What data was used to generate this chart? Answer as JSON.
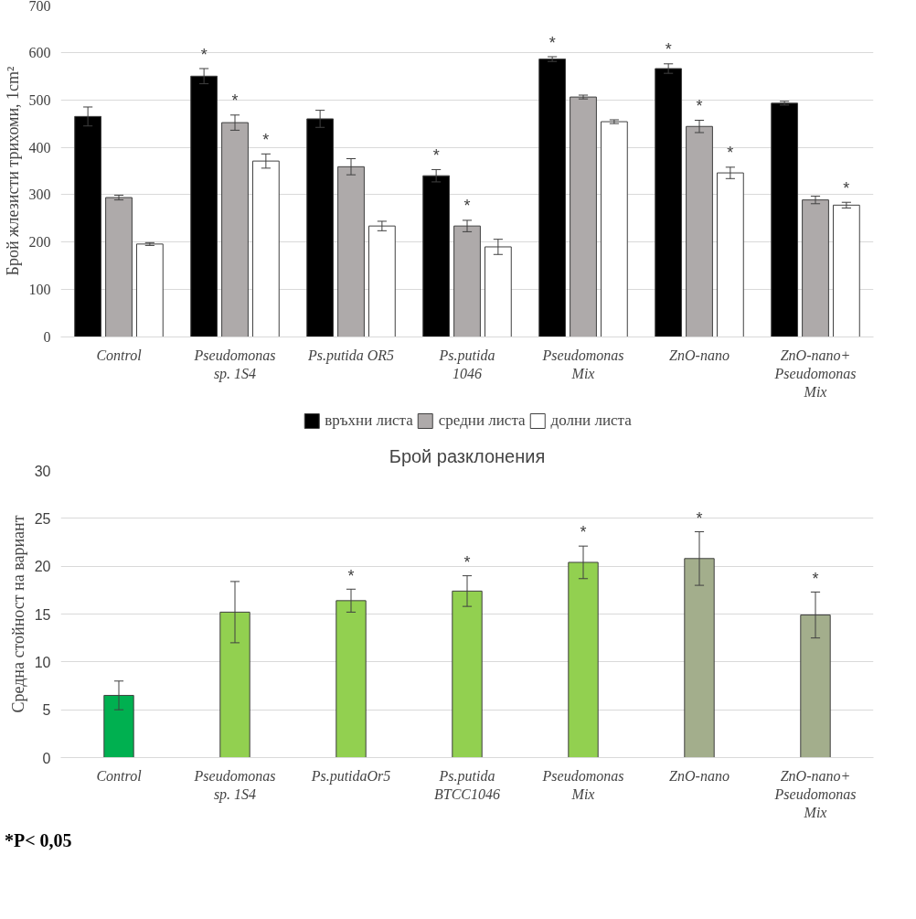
{
  "chart_data": [
    {
      "type": "bar",
      "ylabel": "Брой жлезисти трихоми, 1cm²",
      "categories": [
        "Control",
        "Pseudomonas\nsp. 1S4",
        "Ps.putida OR5",
        "Ps.putida\n1046",
        "Pseudomonas\nMix",
        "ZnO-nano",
        "ZnO-nano+\nPseudomonas\nMix"
      ],
      "series": [
        {
          "name": "връхни листа",
          "color": "#000000",
          "values": [
            465,
            550,
            460,
            340,
            586,
            566,
            493
          ],
          "errors": [
            20,
            16,
            18,
            13,
            5,
            10,
            4
          ],
          "value_labels": [
            null,
            "*",
            null,
            "*",
            "*",
            "*",
            null
          ]
        },
        {
          "name": "средни листа",
          "color": "#aeaaaa",
          "values": [
            294,
            452,
            359,
            234,
            506,
            444,
            289
          ],
          "errors": [
            5,
            16,
            17,
            12,
            4,
            13,
            8
          ],
          "value_labels": [
            null,
            "*",
            null,
            "*",
            null,
            "*",
            null
          ]
        },
        {
          "name": "долни листа",
          "color": "#ffffff",
          "values": [
            196,
            371,
            234,
            190,
            454,
            346,
            278
          ],
          "errors": [
            3,
            15,
            10,
            16,
            4,
            12,
            6
          ],
          "value_labels": [
            null,
            "*",
            null,
            null,
            null,
            "*",
            "*"
          ]
        }
      ],
      "ylim": [
        0,
        700
      ],
      "yticks": [
        0,
        100,
        200,
        300,
        400,
        500,
        600,
        700
      ],
      "grid": "y",
      "legend": "bottom"
    },
    {
      "type": "bar",
      "title": "Брой разклонения",
      "ylabel": "Средна стойност на вариант",
      "categories": [
        "Control",
        "Pseudomonas\nsp. 1S4",
        "Ps.putidaOr5",
        "Ps.putida\nBTCC1046",
        "Pseudomonas\nMix",
        "ZnO-nano",
        "ZnO-nano+\nPseudomonas\nMix"
      ],
      "values": [
        6.5,
        15.2,
        16.4,
        17.4,
        20.4,
        20.8,
        14.9
      ],
      "colors": [
        "#00b050",
        "#92d050",
        "#92d050",
        "#92d050",
        "#92d050",
        "#a3ae8c",
        "#a3ae8c"
      ],
      "errors": [
        1.5,
        3.2,
        1.2,
        1.6,
        1.7,
        2.8,
        2.4
      ],
      "value_labels": [
        null,
        null,
        "*",
        "*",
        "*",
        "*",
        "*"
      ],
      "ylim": [
        0,
        30
      ],
      "yticks": [
        0,
        5,
        10,
        15,
        20,
        25,
        30
      ],
      "grid": "y",
      "annotations": [
        "*P< 0,05"
      ]
    }
  ]
}
